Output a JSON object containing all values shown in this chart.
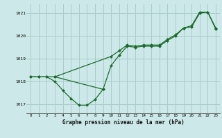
{
  "title": "Graphe pression niveau de la mer (hPa)",
  "bg_color": "#cce8e8",
  "grid_color": "#aacccc",
  "line_color": "#1a6b2a",
  "marker_color": "#1a6b2a",
  "xlim": [
    -0.5,
    23.5
  ],
  "ylim": [
    1016.6,
    1021.4
  ],
  "yticks": [
    1017,
    1018,
    1019,
    1020,
    1021
  ],
  "xticks": [
    0,
    1,
    2,
    3,
    4,
    5,
    6,
    7,
    8,
    9,
    10,
    11,
    12,
    13,
    14,
    15,
    16,
    17,
    18,
    19,
    20,
    21,
    22,
    23
  ],
  "series_dip_x": [
    0,
    1,
    2,
    3,
    4,
    5,
    6,
    7,
    8,
    9
  ],
  "series_dip_y": [
    1018.2,
    1018.2,
    1018.2,
    1018.0,
    1017.6,
    1017.25,
    1016.95,
    1016.95,
    1017.2,
    1017.65
  ],
  "series_main_x": [
    0,
    1,
    2,
    3,
    9,
    10,
    11,
    12,
    13,
    14,
    15,
    16,
    17,
    18,
    19,
    20,
    21,
    22,
    23
  ],
  "series_main_y": [
    1018.2,
    1018.2,
    1018.2,
    1018.2,
    1017.65,
    1018.7,
    1019.15,
    1019.55,
    1019.5,
    1019.55,
    1019.55,
    1019.55,
    1019.8,
    1020.0,
    1020.35,
    1020.4,
    1021.0,
    1021.05,
    1020.3
  ],
  "series_upper_x": [
    3,
    10,
    11,
    12,
    13,
    14,
    15,
    16,
    17,
    18,
    19,
    20,
    21,
    22,
    23
  ],
  "series_upper_y": [
    1018.2,
    1019.1,
    1019.35,
    1019.6,
    1019.55,
    1019.6,
    1019.6,
    1019.6,
    1019.85,
    1020.05,
    1020.35,
    1020.45,
    1021.05,
    1021.05,
    1020.35
  ]
}
